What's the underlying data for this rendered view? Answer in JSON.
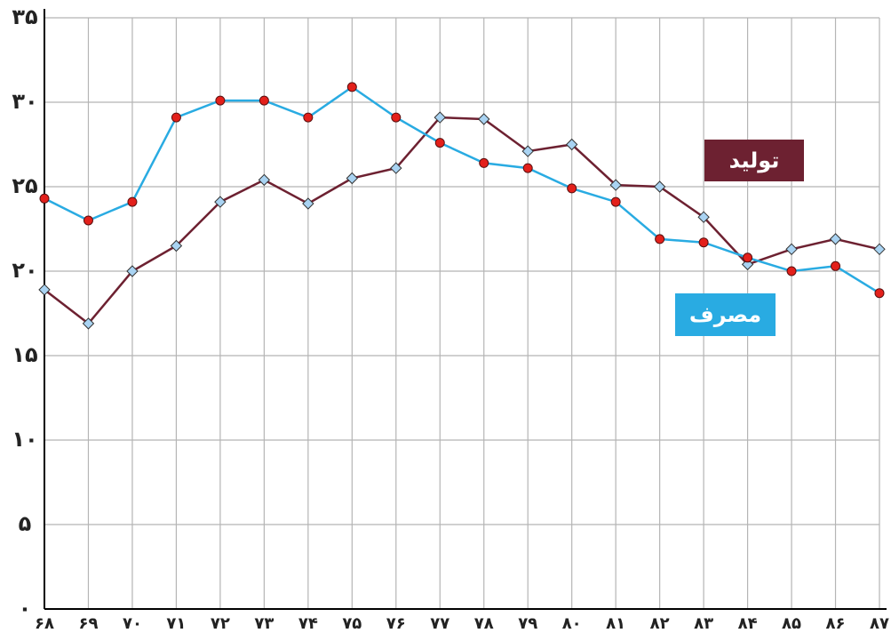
{
  "chart_data": {
    "type": "line",
    "categories": [
      "۶۸",
      "۶۹",
      "۷۰",
      "۷۱",
      "۷۲",
      "۷۳",
      "۷۴",
      "۷۵",
      "۷۶",
      "۷۷",
      "۷۸",
      "۷۹",
      "۸۰",
      "۸۱",
      "۸۲",
      "۸۳",
      "۸۴",
      "۸۵",
      "۸۶",
      "۸۷"
    ],
    "series": [
      {
        "name": "تولید",
        "color": "#6d2131",
        "marker": "diamond",
        "values": [
          18.9,
          16.9,
          20.0,
          21.5,
          24.1,
          25.4,
          24.0,
          25.5,
          26.1,
          29.1,
          29.0,
          27.1,
          27.5,
          25.1,
          25.0,
          23.2,
          20.4,
          21.3,
          21.9,
          21.3
        ]
      },
      {
        "name": "مصرف",
        "color": "#29abe2",
        "marker": "circle",
        "values": [
          24.3,
          23.0,
          24.1,
          29.1,
          30.1,
          30.1,
          29.1,
          30.9,
          29.1,
          27.6,
          26.4,
          26.1,
          24.9,
          24.1,
          21.9,
          21.7,
          20.8,
          20.0,
          20.3,
          18.7
        ]
      }
    ],
    "ylim": [
      0,
      35
    ],
    "yticks": [
      {
        "value": 0,
        "label": "۰"
      },
      {
        "value": 5,
        "label": "۵"
      },
      {
        "value": 10,
        "label": "۱۰"
      },
      {
        "value": 15,
        "label": "۱۵"
      },
      {
        "value": 20,
        "label": "۲۰"
      },
      {
        "value": 25,
        "label": "۲۵"
      },
      {
        "value": 30,
        "label": "۳۰"
      },
      {
        "value": 35,
        "label": "۳۵"
      }
    ],
    "grid": true
  }
}
